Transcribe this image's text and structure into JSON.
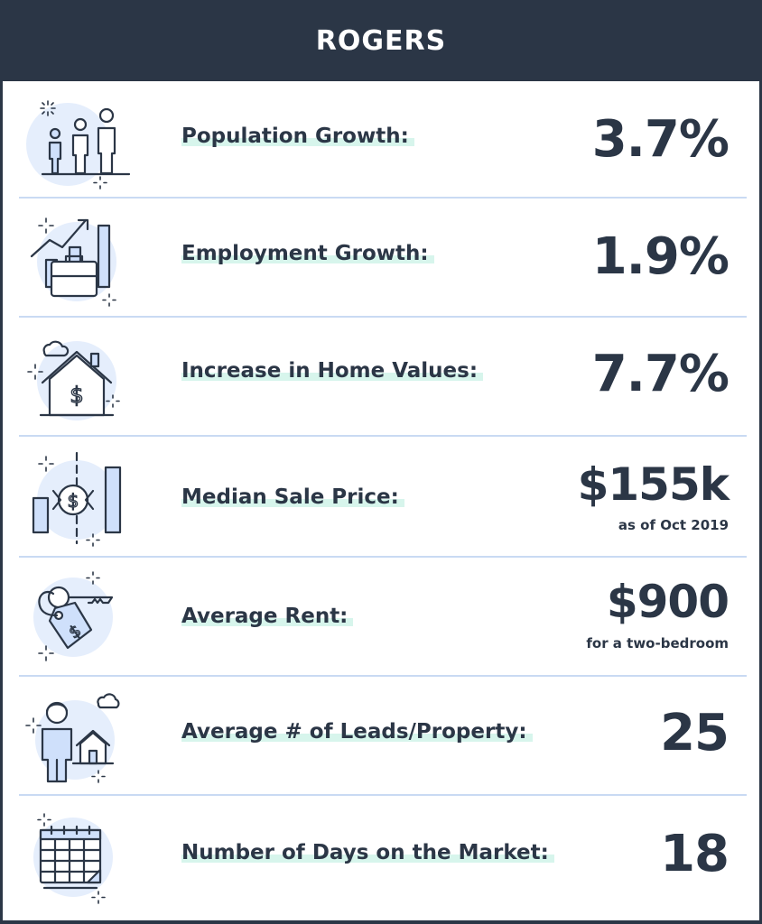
{
  "title": "ROGERS",
  "rows": [
    {
      "label": "Population Growth:",
      "value": "3.7%",
      "icon": "family-icon"
    },
    {
      "label": "Employment Growth:",
      "value": "1.9%",
      "icon": "briefcase-chart-icon"
    },
    {
      "label": "Increase in Home Values:",
      "value": "7.7%",
      "icon": "house-dollar-icon"
    },
    {
      "label": "Median Sale Price:",
      "value": "$155k",
      "note": "as of Oct 2019",
      "icon": "price-bars-icon"
    },
    {
      "label": "Average Rent:",
      "value": "$900",
      "note": "for a two-bedroom",
      "icon": "key-tag-icon"
    },
    {
      "label": "Average # of Leads/Property:",
      "value": "25",
      "icon": "person-house-icon"
    },
    {
      "label": "Number of Days on the Market:",
      "value": "18",
      "icon": "calendar-icon"
    }
  ],
  "colors": {
    "dark": "#2b3646",
    "accent_light": "#cfe0fb",
    "highlight": "#d7f5ec",
    "divider": "#c9daf3"
  }
}
